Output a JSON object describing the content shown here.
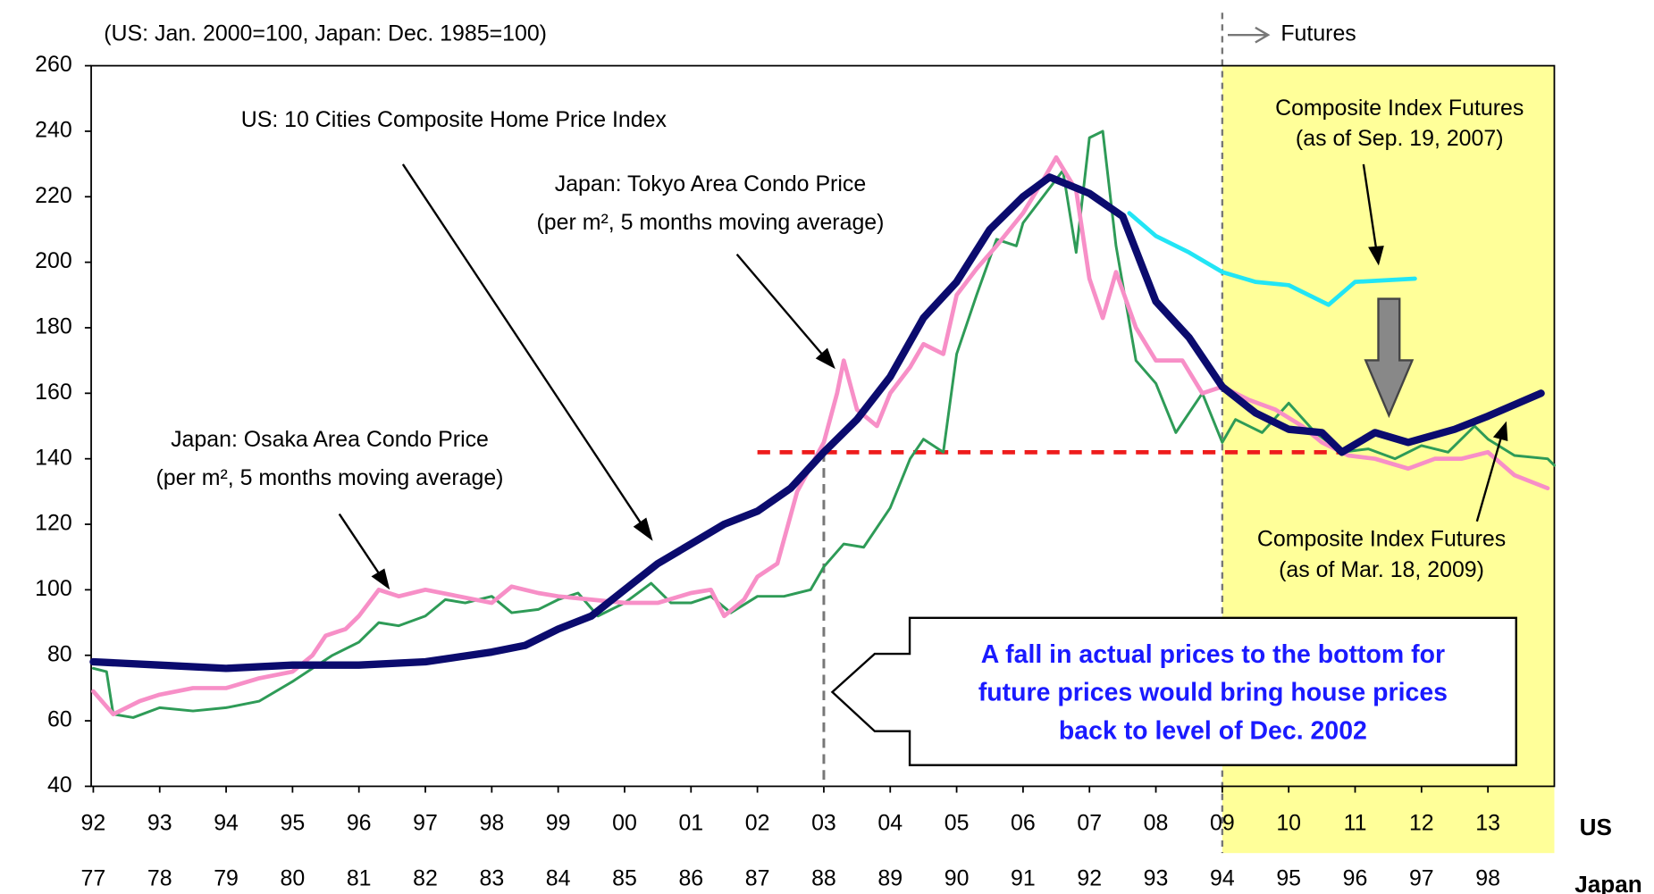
{
  "chart_data": {
    "type": "line",
    "unit_note": "(US: Jan. 2000=100, Japan: Dec. 1985=100)",
    "futures_label": "Futures",
    "x_axis_names": [
      "US",
      "Japan"
    ],
    "xlim": [
      1992,
      2014
    ],
    "ylim": [
      40,
      260
    ],
    "yticks": [
      40,
      60,
      80,
      100,
      120,
      140,
      160,
      180,
      200,
      220,
      240,
      260
    ],
    "xticks": [
      {
        "value": 1992,
        "label": "92"
      },
      {
        "value": 1993,
        "label": "93"
      },
      {
        "value": 1994,
        "label": "94"
      },
      {
        "value": 1995,
        "label": "95"
      },
      {
        "value": 1996,
        "label": "96"
      },
      {
        "value": 1997,
        "label": "97"
      },
      {
        "value": 1998,
        "label": "98"
      },
      {
        "value": 1999,
        "label": "99"
      },
      {
        "value": 2000,
        "label": "00"
      },
      {
        "value": 2001,
        "label": "01"
      },
      {
        "value": 2002,
        "label": "02"
      },
      {
        "value": 2003,
        "label": "03"
      },
      {
        "value": 2004,
        "label": "04"
      },
      {
        "value": 2005,
        "label": "05"
      },
      {
        "value": 2006,
        "label": "06"
      },
      {
        "value": 2007,
        "label": "07"
      },
      {
        "value": 2008,
        "label": "08"
      },
      {
        "value": 2009,
        "label": "09"
      },
      {
        "value": 2010,
        "label": "10"
      },
      {
        "value": 2011,
        "label": "11"
      },
      {
        "value": 2012,
        "label": "12"
      },
      {
        "value": 2013,
        "label": "13"
      }
    ],
    "japan_xticks": [
      {
        "value": 1992,
        "label": "77"
      },
      {
        "value": 1993,
        "label": "78"
      },
      {
        "value": 1994,
        "label": "79"
      },
      {
        "value": 1995,
        "label": "80"
      },
      {
        "value": 1996,
        "label": "81"
      },
      {
        "value": 1997,
        "label": "82"
      },
      {
        "value": 1998,
        "label": "83"
      },
      {
        "value": 1999,
        "label": "84"
      },
      {
        "value": 2000,
        "label": "85"
      },
      {
        "value": 2001,
        "label": "86"
      },
      {
        "value": 2002,
        "label": "87"
      },
      {
        "value": 2003,
        "label": "88"
      },
      {
        "value": 2004,
        "label": "89"
      },
      {
        "value": 2005,
        "label": "90"
      },
      {
        "value": 2006,
        "label": "91"
      },
      {
        "value": 2007,
        "label": "92"
      },
      {
        "value": 2008,
        "label": "93"
      },
      {
        "value": 2009,
        "label": "94"
      },
      {
        "value": 2010,
        "label": "95"
      },
      {
        "value": 2011,
        "label": "96"
      },
      {
        "value": 2012,
        "label": "97"
      },
      {
        "value": 2013,
        "label": "98"
      }
    ],
    "futures_start": 2009,
    "reference_level": {
      "value": 142,
      "x": [
        2002,
        2010.8
      ]
    },
    "reference_date": 2003,
    "box_text": [
      "A fall in actual prices to the bottom for",
      "future prices would bring house prices",
      "back to level of Dec. 2002"
    ],
    "series": [
      {
        "name": "Japan: Osaka Area Condo Price",
        "note": "(per m², 5 months moving average)",
        "color": "#2e9b57",
        "width": 2.5,
        "x": [
          1992,
          1992.2,
          1992.3,
          1992.6,
          1993,
          1993.5,
          1994,
          1994.5,
          1995,
          1995.3,
          1995.6,
          1996,
          1996.3,
          1996.6,
          1997,
          1997.3,
          1997.6,
          1998,
          1998.3,
          1998.7,
          1999,
          1999.3,
          1999.6,
          2000,
          2000.4,
          2000.7,
          2001,
          2001.3,
          2001.6,
          2002,
          2002.4,
          2002.8,
          2003,
          2003.3,
          2003.6,
          2004,
          2004.3,
          2004.5,
          2004.8,
          2005,
          2005.3,
          2005.6,
          2005.9,
          2006,
          2006.3,
          2006.6,
          2006.8,
          2007,
          2007.2,
          2007.4,
          2007.7,
          2008,
          2008.3,
          2008.7,
          2009,
          2009.2,
          2009.6,
          2010,
          2010.4,
          2010.8,
          2011.2,
          2011.6,
          2012,
          2012.4,
          2012.8,
          2013,
          2013.4,
          2013.9,
          2014
        ],
        "values": [
          76,
          75,
          62,
          61,
          64,
          63,
          64,
          66,
          72,
          76,
          80,
          84,
          90,
          89,
          92,
          97,
          96,
          98,
          93,
          94,
          97,
          99,
          92,
          96,
          102,
          96,
          96,
          98,
          93,
          98,
          98,
          100,
          107,
          114,
          113,
          125,
          140,
          146,
          142,
          172,
          190,
          207,
          205,
          212,
          220,
          228,
          203,
          238,
          240,
          205,
          170,
          163,
          148,
          160,
          145,
          152,
          148,
          157,
          148,
          142,
          143,
          140,
          144,
          142,
          150,
          146,
          141,
          140,
          138
        ]
      },
      {
        "name": "Japan: Tokyo Area Condo Price",
        "note": "(per m², 5 months moving average)",
        "color": "#f78fc7",
        "width": 4,
        "x": [
          1992,
          1992.3,
          1992.7,
          1993,
          1993.5,
          1994,
          1994.5,
          1995,
          1995.3,
          1995.5,
          1995.8,
          1996,
          1996.3,
          1996.6,
          1997,
          1997.5,
          1998,
          1998.3,
          1998.7,
          1999,
          1999.5,
          2000,
          2000.5,
          2001,
          2001.3,
          2001.5,
          2001.8,
          2002,
          2002.3,
          2002.6,
          2003,
          2003.2,
          2003.3,
          2003.5,
          2003.8,
          2004,
          2004.3,
          2004.5,
          2004.8,
          2005,
          2005.3,
          2005.6,
          2006,
          2006.3,
          2006.5,
          2006.8,
          2007,
          2007.2,
          2007.4,
          2007.7,
          2008,
          2008.4,
          2008.7,
          2009,
          2009.4,
          2009.8,
          2010.2,
          2010.5,
          2010.9,
          2011.3,
          2011.8,
          2012.2,
          2012.6,
          2013,
          2013.4,
          2013.9
        ],
        "values": [
          69,
          62,
          66,
          68,
          70,
          70,
          73,
          75,
          80,
          86,
          88,
          92,
          100,
          98,
          100,
          98,
          96,
          101,
          99,
          98,
          97,
          96,
          96,
          99,
          100,
          92,
          97,
          104,
          108,
          130,
          145,
          160,
          170,
          155,
          150,
          160,
          168,
          175,
          172,
          190,
          198,
          205,
          215,
          225,
          232,
          222,
          195,
          183,
          197,
          180,
          170,
          170,
          160,
          162,
          158,
          155,
          150,
          145,
          141,
          140,
          137,
          140,
          140,
          142,
          135,
          131
        ]
      },
      {
        "name": "US: 10 Cities Composite Home Price Index",
        "color": "#0b0b6e",
        "width": 7,
        "x": [
          1992,
          1993,
          1994,
          1995,
          1996,
          1997,
          1998,
          1998.5,
          1999,
          1999.5,
          2000,
          2000.5,
          2001,
          2001.5,
          2002,
          2002.5,
          2003,
          2003.5,
          2004,
          2004.5,
          2005,
          2005.5,
          2006,
          2006.4,
          2007,
          2007.5,
          2008,
          2008.5,
          2009
        ],
        "values": [
          78,
          77,
          76,
          77,
          77,
          78,
          81,
          83,
          88,
          92,
          100,
          108,
          114,
          120,
          124,
          131,
          142,
          152,
          165,
          183,
          194,
          210,
          220,
          226,
          221,
          214,
          188,
          177,
          162
        ]
      },
      {
        "name": "Composite Index Futures",
        "note": "(as of Sep. 19, 2007)",
        "color": "#22e5f5",
        "width": 4,
        "x": [
          2007.6,
          2008,
          2008.5,
          2009,
          2009.5,
          2010,
          2010.6,
          2011,
          2011.9
        ],
        "values": [
          215,
          208,
          203,
          197,
          194,
          193,
          187,
          194,
          195
        ]
      },
      {
        "name": "Composite Index Futures",
        "note": "(as of Mar. 18, 2009)",
        "color": "#0b0b6e",
        "width": 7,
        "x": [
          2009,
          2009.5,
          2010,
          2010.5,
          2010.8,
          2011.3,
          2011.8,
          2012.5,
          2013,
          2013.8
        ],
        "values": [
          162,
          154,
          149,
          148,
          142,
          148,
          145,
          149,
          153,
          160
        ]
      }
    ]
  }
}
